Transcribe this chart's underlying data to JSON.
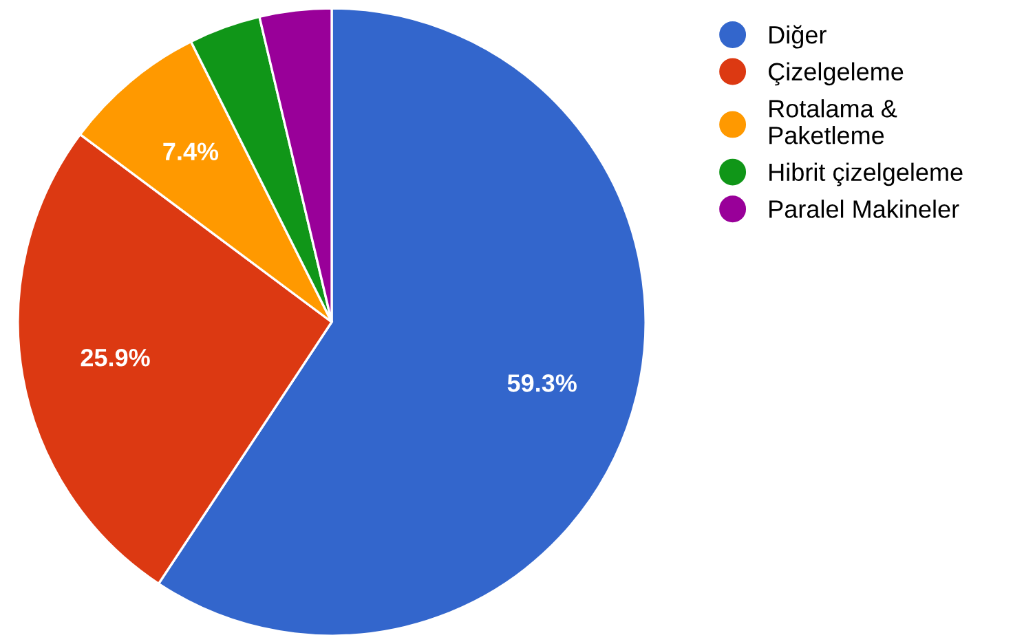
{
  "chart_data": {
    "type": "pie",
    "categories": [
      "Diğer",
      "Çizelgeleme",
      "Rotalama & Paketleme",
      "Hibrit çizelgeleme",
      "Paralel Makineler"
    ],
    "values": [
      59.3,
      25.9,
      7.4,
      3.7,
      3.7
    ],
    "colors": [
      "#3366cc",
      "#dc3912",
      "#ff9900",
      "#109618",
      "#990099"
    ],
    "value_labels": [
      "59.3%",
      "25.9%",
      "7.4%",
      null,
      null
    ],
    "legend": "right"
  }
}
